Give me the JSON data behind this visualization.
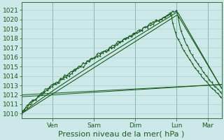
{
  "bg_color": "#cce8e8",
  "grid_color": "#99cccc",
  "line_color": "#1a5c1a",
  "ylim": [
    1009.5,
    1021.8
  ],
  "yticks": [
    1010,
    1011,
    1012,
    1013,
    1014,
    1015,
    1016,
    1017,
    1018,
    1019,
    1020,
    1021
  ],
  "xlabel": "Pression niveau de la mer( hPa )",
  "xlabel_fontsize": 8,
  "tick_fontsize": 6.5,
  "day_labels": [
    "Ven",
    "Sam",
    "Dim",
    "Lun",
    "Mar"
  ],
  "day_positions": [
    0.155,
    0.362,
    0.568,
    0.775,
    0.93
  ],
  "total_points": 144,
  "figsize": [
    3.2,
    2.0
  ],
  "dpi": 100
}
